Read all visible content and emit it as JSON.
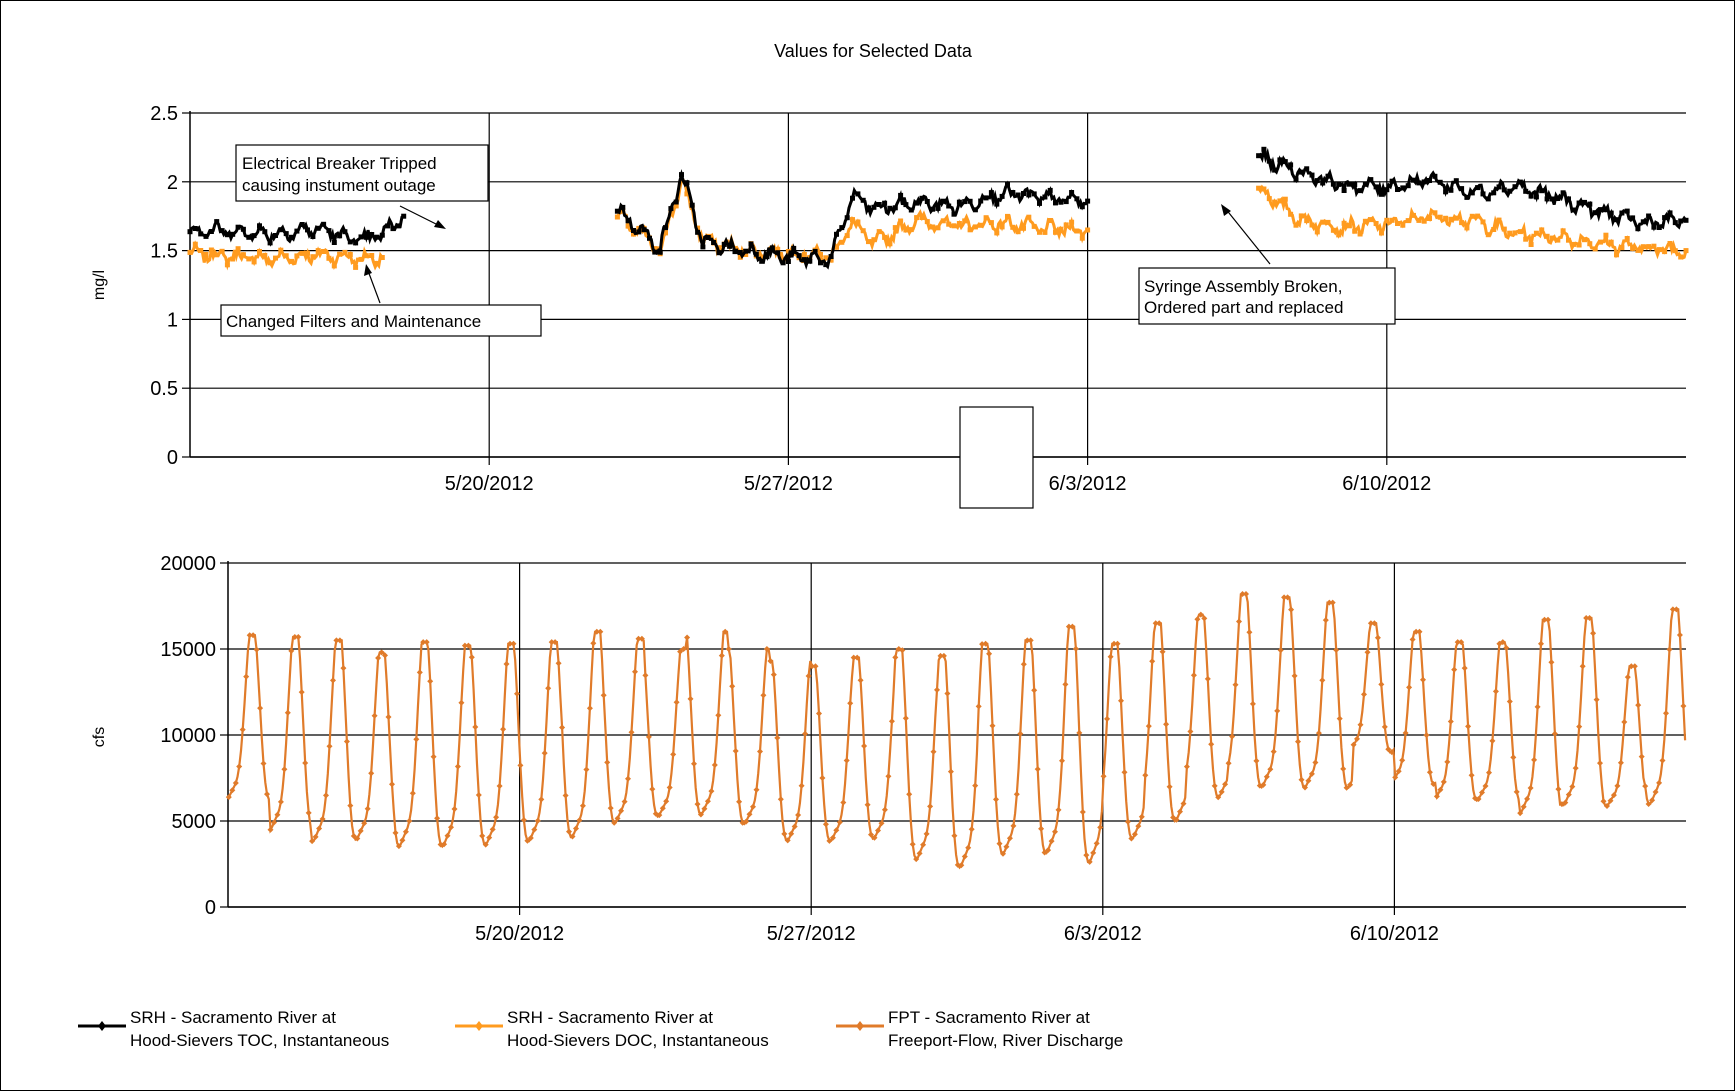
{
  "chart_data": {
    "title": "Values for Selected Data",
    "x_range": [
      "5/13/2012",
      "6/17/2012"
    ],
    "charts": [
      {
        "type": "line",
        "ylabel": "mg/l",
        "ylim": [
          0,
          2.5
        ],
        "yticks": [
          "0",
          "0.5",
          "1",
          "1.5",
          "2",
          "2.5"
        ],
        "xticks": [
          "5/20/2012",
          "5/27/2012",
          "6/3/2012",
          "6/10/2012"
        ],
        "grid": true,
        "series": [
          {
            "name": "SRH - Sacramento River at Hood-Sievers TOC, Instantaneous",
            "color": "#000000",
            "segments": [
              {
                "x": [
                  "5/13/2012",
                  "5/14/2012",
                  "5/15/2012",
                  "5/16/2012",
                  "5/17/2012",
                  "5/17/2012 12:00",
                  "5/18/2012"
                ],
                "y": [
                  1.65,
                  1.64,
                  1.62,
                  1.66,
                  1.57,
                  1.62,
                  1.75
                ]
              },
              {
                "x": [
                  "5/23/2012",
                  "5/24/2012",
                  "5/24/2012 12:00",
                  "5/25/2012",
                  "5/26/2012",
                  "5/27/2012",
                  "5/28/2012",
                  "5/28/2012 12:00",
                  "5/29/2012",
                  "5/30/2012",
                  "5/31/2012",
                  "6/1/2012",
                  "6/2/2012",
                  "6/3/2012"
                ],
                "y": [
                  1.8,
                  1.52,
                  2.05,
                  1.56,
                  1.5,
                  1.45,
                  1.44,
                  1.9,
                  1.8,
                  1.85,
                  1.82,
                  1.92,
                  1.88,
                  1.86
                ]
              },
              {
                "x": [
                  "6/7/2012",
                  "6/8/2012",
                  "6/9/2012",
                  "6/10/2012",
                  "6/11/2012",
                  "6/12/2012",
                  "6/13/2012",
                  "6/14/2012",
                  "6/15/2012",
                  "6/16/2012",
                  "6/17/2012"
                ],
                "y": [
                  2.18,
                  2.07,
                  1.97,
                  1.96,
                  2.02,
                  1.92,
                  1.97,
                  1.88,
                  1.78,
                  1.7,
                  1.72
                ]
              }
            ]
          },
          {
            "name": "SRH - Sacramento River at Hood-Sievers DOC, Instantaneous",
            "color": "#FF9B1F",
            "segments": [
              {
                "x": [
                  "5/13/2012",
                  "5/14/2012",
                  "5/15/2012",
                  "5/16/2012",
                  "5/17/2012",
                  "5/17/2012 12:00"
                ],
                "y": [
                  1.48,
                  1.46,
                  1.44,
                  1.47,
                  1.44,
                  1.45
                ]
              },
              {
                "x": [
                  "5/23/2012",
                  "5/24/2012",
                  "5/24/2012 12:00",
                  "5/25/2012",
                  "5/26/2012",
                  "5/27/2012",
                  "5/28/2012",
                  "5/28/2012 12:00",
                  "5/29/2012",
                  "5/30/2012",
                  "5/31/2012",
                  "6/1/2012",
                  "6/2/2012",
                  "6/3/2012"
                ],
                "y": [
                  1.76,
                  1.5,
                  2.0,
                  1.58,
                  1.5,
                  1.48,
                  1.46,
                  1.7,
                  1.55,
                  1.72,
                  1.68,
                  1.7,
                  1.66,
                  1.65
                ]
              },
              {
                "x": [
                  "6/7/2012",
                  "6/8/2012",
                  "6/9/2012",
                  "6/10/2012",
                  "6/11/2012",
                  "6/12/2012",
                  "6/13/2012",
                  "6/14/2012",
                  "6/15/2012",
                  "6/16/2012",
                  "6/17/2012"
                ],
                "y": [
                  1.95,
                  1.72,
                  1.67,
                  1.69,
                  1.75,
                  1.72,
                  1.62,
                  1.6,
                  1.55,
                  1.52,
                  1.5
                ]
              }
            ]
          }
        ],
        "annotations": [
          {
            "lines": [
              "Electrical Breaker Tripped",
              "causing instument outage"
            ]
          },
          {
            "lines": [
              "Changed Filters and Maintenance"
            ]
          },
          {
            "lines": [
              "Syringe Assembly Broken,",
              "Ordered part and replaced"
            ]
          }
        ]
      },
      {
        "type": "line",
        "ylabel": "cfs",
        "ylim": [
          0,
          20000
        ],
        "yticks": [
          "0",
          "5000",
          "10000",
          "15000",
          "20000"
        ],
        "xticks": [
          "5/20/2012",
          "5/27/2012",
          "6/3/2012",
          "6/10/2012"
        ],
        "grid": true,
        "series": [
          {
            "name": "FPT - Sacramento River at Freeport-Flow, River Discharge",
            "color": "#E07B2A",
            "daily_peaks": [
              15800,
              15700,
              15500,
              14800,
              15400,
              15200,
              15300,
              15400,
              16000,
              15600,
              15000,
              16000,
              15000,
              14300,
              14000,
              14500,
              15000,
              14600,
              15300,
              15500,
              16300,
              15300,
              16500,
              17000,
              18200,
              18000,
              17700,
              16500,
              16000,
              15400,
              15400,
              16700,
              16800,
              14000,
              17300
            ],
            "daily_troughs": [
              5000,
              3000,
              2300,
              2500,
              2000,
              2000,
              2100,
              2300,
              2500,
              3500,
              4000,
              4000,
              3500,
              2500,
              2500,
              2600,
              1200,
              700,
              1500,
              1500,
              800,
              2500,
              3500,
              5000,
              5500,
              5500,
              5500,
              8000,
              6000,
              5000,
              5000,
              4000,
              4500,
              4800,
              4500
            ]
          }
        ]
      }
    ]
  },
  "legend": {
    "items": [
      {
        "line1": "SRH - Sacramento River at",
        "line2": "Hood-Sievers TOC, Instantaneous",
        "color": "#000000"
      },
      {
        "line1": "SRH - Sacramento River at",
        "line2": "Hood-Sievers DOC, Instantaneous",
        "color": "#FF9B1F"
      },
      {
        "line1": "FPT - Sacramento River at",
        "line2": "Freeport-Flow, River Discharge",
        "color": "#E07B2A"
      }
    ]
  }
}
